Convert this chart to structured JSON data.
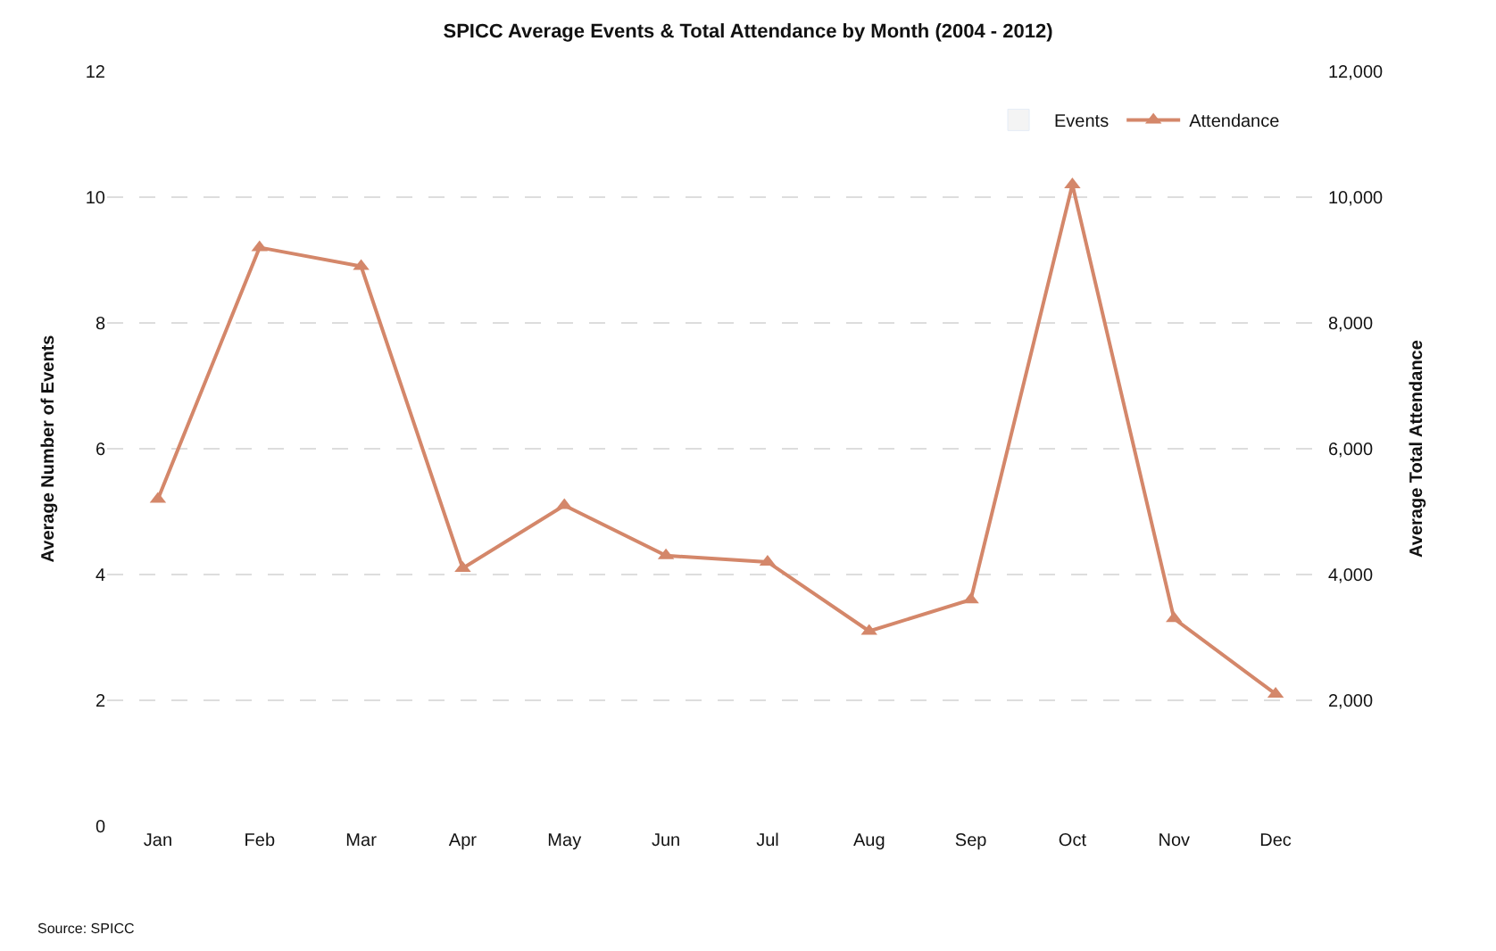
{
  "chart_data": {
    "type": "line",
    "title": "SPICC Average Events & Total Attendance by Month (2004 - 2012)",
    "ylabel": "Average Number of Events",
    "y2label": "Average Total Attendance",
    "categories": [
      "Jan",
      "Feb",
      "Mar",
      "Apr",
      "May",
      "Jun",
      "Jul",
      "Aug",
      "Sep",
      "Oct",
      "Nov",
      "Dec"
    ],
    "series": [
      {
        "name": "Events",
        "type": "bar",
        "color": "#f4f4f4",
        "values": [
          null,
          null,
          null,
          null,
          null,
          null,
          null,
          null,
          null,
          null,
          null,
          null
        ]
      },
      {
        "name": "Attendance",
        "axis": "y2",
        "color": "#d4876a",
        "marker": "triangle",
        "values": [
          5200,
          9200,
          8900,
          4100,
          5100,
          4300,
          4200,
          3100,
          3600,
          10200,
          3300,
          2100
        ]
      }
    ],
    "ylim": [
      0,
      12
    ],
    "yticks": [
      0,
      2,
      4,
      6,
      8,
      10,
      12
    ],
    "y2lim": [
      0,
      12000
    ],
    "y2ticks": [
      {
        "value": 2000,
        "label": "2,000"
      },
      {
        "value": 4000,
        "label": "4,000"
      },
      {
        "value": 6000,
        "label": "6,000"
      },
      {
        "value": 8000,
        "label": "8,000"
      },
      {
        "value": 10000,
        "label": "10,000"
      },
      {
        "value": 12000,
        "label": "12,000"
      }
    ],
    "grid": "y",
    "legend": "top right",
    "annotations": [
      "Source: SPICC"
    ]
  }
}
